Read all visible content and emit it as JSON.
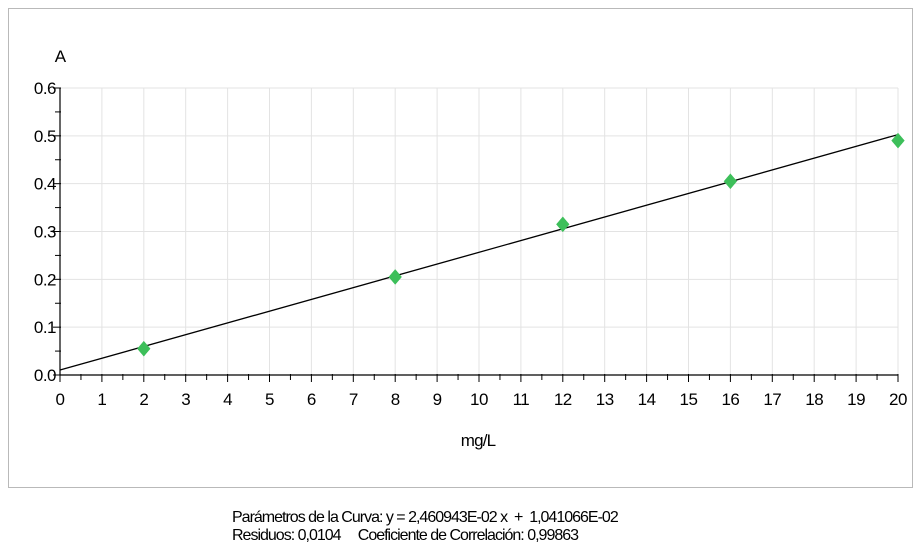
{
  "chart_data": {
    "type": "scatter",
    "ylabel": "A",
    "xlabel": "mg/L",
    "xlim": [
      0,
      20
    ],
    "ylim": [
      0,
      0.6
    ],
    "x_ticks": [
      "0",
      "1",
      "2",
      "3",
      "4",
      "5",
      "6",
      "7",
      "8",
      "9",
      "10",
      "11",
      "12",
      "13",
      "14",
      "15",
      "16",
      "17",
      "18",
      "19",
      "20"
    ],
    "y_ticks": [
      "0.0",
      "0.1",
      "0.2",
      "0.3",
      "0.4",
      "0.5",
      "0.6"
    ],
    "grid": true,
    "series": [
      {
        "marker": "diamond",
        "color": "#3dbf5a",
        "x": [
          2,
          8,
          12,
          16,
          20
        ],
        "y": [
          0.055,
          0.205,
          0.315,
          0.405,
          0.49
        ]
      }
    ],
    "fit_line": {
      "slope": 0.02460943,
      "intercept": 0.01041066,
      "color": "#000000"
    }
  },
  "footer": {
    "line1": "Parámetros de la Curva: y = 2,460943E-02 x  +  1,041066E-02",
    "line2": "Residuos: 0,0104     Coeficiente de Correlación: 0,99863"
  }
}
